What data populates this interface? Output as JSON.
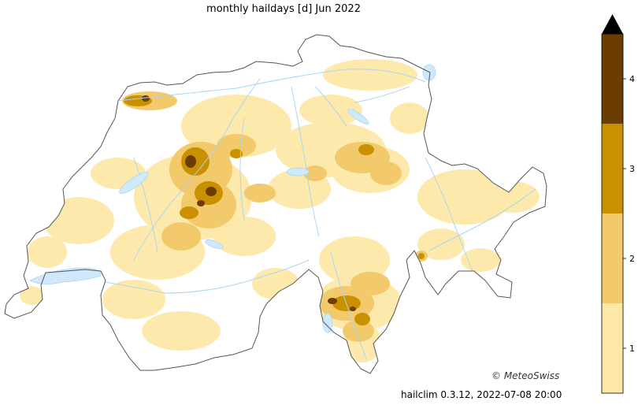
{
  "map": {
    "title": "monthly haildays [d] Jun 2022",
    "credit": "© MeteoSwiss",
    "version": "hailclim 0.3.12, 2022-07-08 20:00",
    "colors": {
      "background": "#ffffff",
      "border": "#555555",
      "rivers": "#a9d6f5",
      "lakes": "#cfe9fb",
      "level_1": "#fde8a8",
      "level_2": "#f2c96b",
      "level_3": "#c99100",
      "level_4": "#6b3d00"
    }
  },
  "colorbar": {
    "ticks": [
      {
        "label": "1",
        "value": 1
      },
      {
        "label": "2",
        "value": 2
      },
      {
        "label": "3",
        "value": 3
      },
      {
        "label": "4",
        "value": 4
      }
    ],
    "segments": [
      {
        "from": 0.5,
        "to": 1.5,
        "color": "#fde8a8"
      },
      {
        "from": 1.5,
        "to": 2.5,
        "color": "#f2c96b"
      },
      {
        "from": 2.5,
        "to": 3.5,
        "color": "#c99100"
      },
      {
        "from": 3.5,
        "to": 4.5,
        "color": "#6b3d00"
      }
    ],
    "extend": "max",
    "extend_color": "#000000"
  }
}
